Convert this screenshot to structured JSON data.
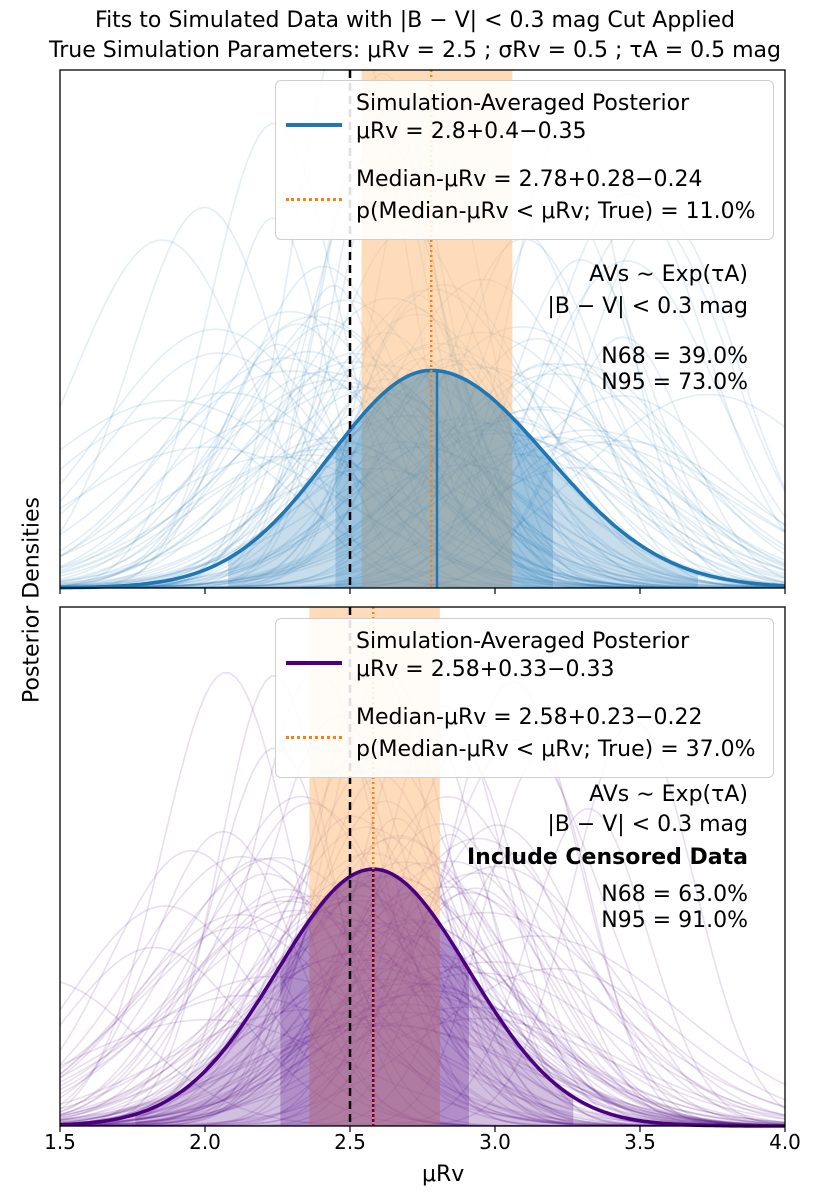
{
  "title_line1": "Fits to Simulated Data with |B − V| < 0.3 mag Cut Applied",
  "title_line2": "True Simulation Parameters: μRv = 2.5 ; σRv = 0.5 ; τA = 0.5 mag",
  "ylabel": "Posterior Densities",
  "xlabel": "μRv",
  "x_ticks": [
    "1.5",
    "2.0",
    "2.5",
    "3.0",
    "3.5",
    "4.0"
  ],
  "colors": {
    "top_series": "#1f77b4",
    "bottom_series": "#4b0082",
    "median_band": "#ffbf80",
    "median_line": "#ff7f0e",
    "true_line": "#000000"
  },
  "panels": [
    {
      "legend_avg_label": "Simulation-Averaged Posterior",
      "legend_avg_value": "μRv = 2.8+0.4−0.35",
      "legend_median_value": "Median-μRv = 2.78+0.28−0.24",
      "legend_prob": "p(Median-μRv < μRv; True) = 11.0%",
      "ann_prior": "AVs ∼ Exp(τA)",
      "ann_cut": "|B − V| < 0.3 mag",
      "ann_n68": "N68 = 39.0%",
      "ann_n95": "N95 = 73.0%"
    },
    {
      "legend_avg_label": "Simulation-Averaged Posterior",
      "legend_avg_value": "μRv = 2.58+0.33−0.33",
      "legend_median_value": "Median-μRv = 2.58+0.23−0.22",
      "legend_prob": "p(Median-μRv < μRv; True) = 37.0%",
      "ann_prior": "AVs ∼ Exp(τA)",
      "ann_cut": "|B − V| < 0.3 mag",
      "ann_extra": "Include Censored Data",
      "ann_n68": "N68 = 63.0%",
      "ann_n95": "N95 = 91.0%"
    }
  ],
  "chart_data": [
    {
      "type": "line",
      "xlabel": "μRv",
      "ylabel": "Posterior Densities",
      "xlim": [
        1.5,
        4.0
      ],
      "true_value": 2.5,
      "series": [
        {
          "name": "Simulation-Averaged Posterior",
          "mode": 2.78,
          "minus": 0.35,
          "plus": 0.4,
          "median": 2.8,
          "ci68": [
            2.45,
            3.2
          ],
          "ci95": [
            2.08,
            3.7
          ]
        }
      ],
      "median_of_medians": {
        "value": 2.78,
        "band": [
          2.54,
          3.06
        ]
      },
      "n_individual_posteriors": 100
    },
    {
      "type": "line",
      "xlabel": "μRv",
      "ylabel": "Posterior Densities",
      "xlim": [
        1.5,
        4.0
      ],
      "true_value": 2.5,
      "series": [
        {
          "name": "Simulation-Averaged Posterior",
          "mode": 2.58,
          "minus": 0.33,
          "plus": 0.33,
          "median": 2.58,
          "ci68": [
            2.26,
            2.91
          ],
          "ci95": [
            1.76,
            3.27
          ]
        }
      ],
      "median_of_medians": {
        "value": 2.58,
        "band": [
          2.36,
          2.81
        ]
      },
      "n_individual_posteriors": 100
    }
  ]
}
